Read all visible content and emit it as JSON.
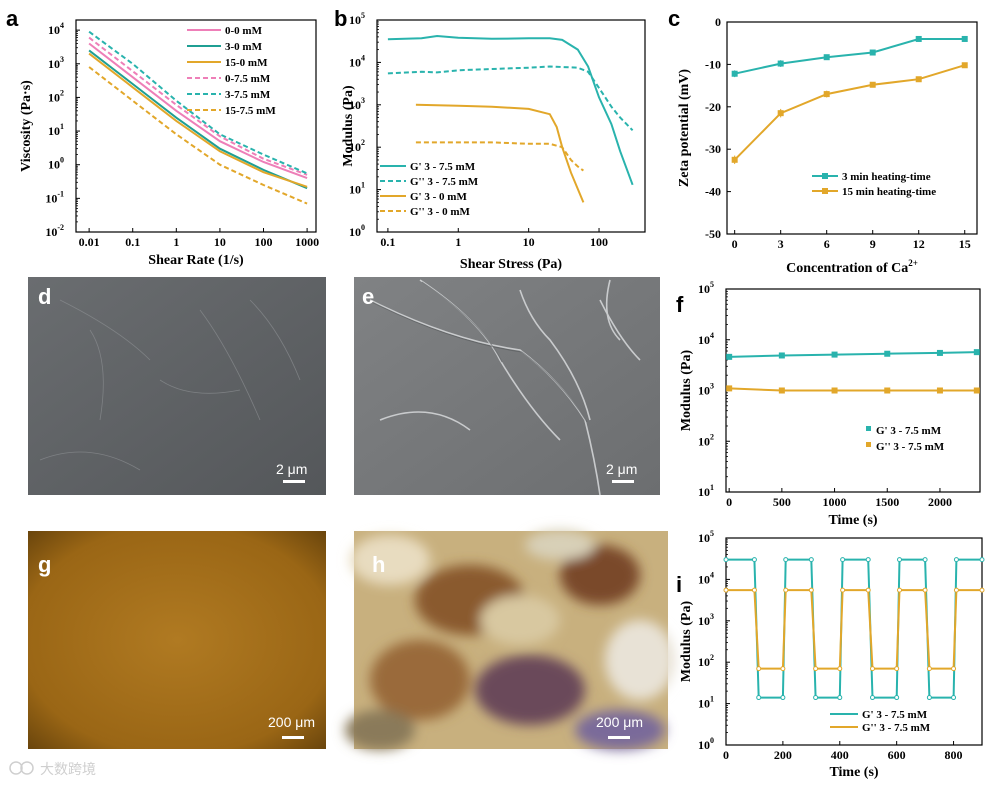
{
  "colors": {
    "pink": "#ee7fb8",
    "teal": "#29b3ad",
    "gold": "#e2a72a",
    "blue": "#2ea8c8",
    "text": "#000000"
  },
  "watermark": "大数跨境",
  "chart_data": [
    {
      "id": "a",
      "letter": "a",
      "type": "line",
      "xscale": "log",
      "yscale": "log",
      "xlim": [
        0.005,
        1600
      ],
      "ylim": [
        0.01,
        20000
      ],
      "xlabel": "Shear Rate (1/s)",
      "ylabel": "Viscosity (Pa·s)",
      "xticks": [
        {
          "v": 0.01,
          "t": "0.01"
        },
        {
          "v": 0.1,
          "t": "0.1"
        },
        {
          "v": 1,
          "t": "1"
        },
        {
          "v": 10,
          "t": "10"
        },
        {
          "v": 100,
          "t": "100"
        },
        {
          "v": 1000,
          "t": "1000"
        }
      ],
      "yticks": [
        {
          "v": 0.01,
          "t": "10"
        },
        {
          "v": 0.1,
          "t": "10"
        },
        {
          "v": 1,
          "t": "10"
        },
        {
          "v": 10,
          "t": "10"
        },
        {
          "v": 100,
          "t": "10"
        },
        {
          "v": 1000,
          "t": "10"
        },
        {
          "v": 10000,
          "t": "10"
        }
      ],
      "ytick_exp": [
        "-2",
        "-1",
        "0",
        "1",
        "2",
        "3",
        "4"
      ],
      "legend_pos": "top-right",
      "series": [
        {
          "name": "0-0 mM",
          "color": "#ee7fb8",
          "dash": false,
          "x": [
            0.01,
            0.1,
            1,
            10,
            100,
            1000
          ],
          "y": [
            4000,
            400,
            40,
            5,
            1.2,
            0.4
          ]
        },
        {
          "name": "3-0 mM",
          "color": "#1f9f93",
          "dash": false,
          "x": [
            0.01,
            0.1,
            1,
            10,
            100,
            1000
          ],
          "y": [
            2500,
            250,
            25,
            3,
            0.7,
            0.2
          ]
        },
        {
          "name": "15-0 mM",
          "color": "#e2a72a",
          "dash": false,
          "x": [
            0.01,
            0.1,
            1,
            10,
            100,
            1000
          ],
          "y": [
            2000,
            200,
            20,
            2.5,
            0.6,
            0.22
          ]
        },
        {
          "name": "0-7.5 mM",
          "color": "#ee7fb8",
          "dash": true,
          "x": [
            0.01,
            0.1,
            1,
            10,
            100,
            1000
          ],
          "y": [
            6000,
            600,
            60,
            7,
            1.5,
            0.5
          ]
        },
        {
          "name": "3-7.5 mM",
          "color": "#29b3ad",
          "dash": true,
          "x": [
            0.01,
            0.1,
            1,
            10,
            100,
            1000
          ],
          "y": [
            9000,
            1000,
            80,
            8,
            2,
            0.55
          ]
        },
        {
          "name": "15-7.5 mM",
          "color": "#e2a72a",
          "dash": true,
          "x": [
            0.01,
            0.1,
            1,
            10,
            100,
            1000
          ],
          "y": [
            800,
            80,
            8,
            1,
            0.25,
            0.07
          ]
        }
      ]
    },
    {
      "id": "b",
      "letter": "b",
      "type": "line",
      "xscale": "log",
      "yscale": "log",
      "xlim": [
        0.07,
        450
      ],
      "ylim": [
        1,
        100000
      ],
      "xlabel": "Shear Stress (Pa)",
      "ylabel": "Modulus (Pa)",
      "xticks": [
        {
          "v": 0.1,
          "t": "0.1"
        },
        {
          "v": 1,
          "t": "1"
        },
        {
          "v": 10,
          "t": "10"
        },
        {
          "v": 100,
          "t": "100"
        }
      ],
      "yticks": [
        {
          "v": 1,
          "t": "10"
        },
        {
          "v": 10,
          "t": "10"
        },
        {
          "v": 100,
          "t": "10"
        },
        {
          "v": 1000,
          "t": "10"
        },
        {
          "v": 10000,
          "t": "10"
        },
        {
          "v": 100000,
          "t": "10"
        }
      ],
      "ytick_exp": [
        "0",
        "1",
        "2",
        "3",
        "4",
        "5"
      ],
      "legend_pos": "bottom-left",
      "series": [
        {
          "name": "G' 3 - 7.5 mM",
          "color": "#29b3ad",
          "dash": false,
          "x": [
            0.1,
            0.3,
            0.5,
            1,
            3,
            10,
            20,
            30,
            50,
            70,
            100,
            150,
            200,
            300
          ],
          "y": [
            35000,
            37000,
            42000,
            38000,
            36000,
            37000,
            37000,
            34000,
            20000,
            8000,
            1500,
            350,
            80,
            13
          ]
        },
        {
          "name": "G'' 3 - 7.5 mM",
          "color": "#29b3ad",
          "dash": true,
          "x": [
            0.1,
            0.3,
            0.5,
            1,
            3,
            10,
            20,
            30,
            50,
            70,
            100,
            150,
            200,
            300
          ],
          "y": [
            5500,
            6000,
            5800,
            6500,
            7000,
            7500,
            8000,
            7800,
            7500,
            6000,
            2500,
            900,
            500,
            250
          ]
        },
        {
          "name": "G' 3 - 0 mM",
          "color": "#e2a72a",
          "dash": false,
          "x": [
            0.25,
            0.5,
            1,
            3,
            10,
            20,
            25,
            30,
            40,
            60
          ],
          "y": [
            1000,
            980,
            950,
            900,
            800,
            600,
            300,
            100,
            25,
            5
          ]
        },
        {
          "name": "G'' 3 - 0 mM",
          "color": "#e2a72a",
          "dash": true,
          "x": [
            0.25,
            0.5,
            1,
            3,
            10,
            20,
            30,
            40,
            50,
            60
          ],
          "y": [
            130,
            130,
            130,
            130,
            120,
            120,
            100,
            50,
            35,
            28
          ]
        }
      ]
    },
    {
      "id": "c",
      "letter": "c",
      "type": "line",
      "xscale": "linear",
      "yscale": "linear",
      "xlim": [
        -0.5,
        15.8
      ],
      "ylim": [
        -50,
        0
      ],
      "xlabel": "Concentration of Ca",
      "xlabel_sup": "2+",
      "ylabel": "Zeta potential (mV)",
      "xticks": [
        {
          "v": 0,
          "t": "0"
        },
        {
          "v": 3,
          "t": "3"
        },
        {
          "v": 6,
          "t": "6"
        },
        {
          "v": 9,
          "t": "9"
        },
        {
          "v": 12,
          "t": "12"
        },
        {
          "v": 15,
          "t": "15"
        }
      ],
      "yticks": [
        {
          "v": 0,
          "t": "0"
        },
        {
          "v": -10,
          "t": "-10"
        },
        {
          "v": -20,
          "t": "-20"
        },
        {
          "v": -30,
          "t": "-30"
        },
        {
          "v": -40,
          "t": "-40"
        },
        {
          "v": -50,
          "t": "-50"
        }
      ],
      "legend_pos": "right-middle",
      "series": [
        {
          "name": "3 min heating-time",
          "color": "#29b3ad",
          "dash": false,
          "marker": "square",
          "x": [
            0,
            3,
            6,
            9,
            12,
            15
          ],
          "y": [
            -12.2,
            -9.8,
            -8.3,
            -7.2,
            -4,
            -4
          ],
          "err": [
            0.8,
            0.8,
            0.5,
            0.4,
            0.3,
            0.3
          ]
        },
        {
          "name": "15 min heating-time",
          "color": "#e2a72a",
          "dash": false,
          "marker": "square",
          "x": [
            0,
            3,
            6,
            9,
            12,
            15
          ],
          "y": [
            -32.5,
            -21.5,
            -17,
            -14.8,
            -13.5,
            -10.2
          ],
          "err": [
            1,
            1,
            0.8,
            0.4,
            0.4,
            0.3
          ]
        }
      ]
    },
    {
      "id": "f",
      "letter": "f",
      "type": "line",
      "xscale": "linear",
      "yscale": "log",
      "xlim": [
        -30,
        2380
      ],
      "ylim": [
        10,
        100000
      ],
      "xlabel": "Time (s)",
      "ylabel": "Modulus (Pa)",
      "xticks": [
        {
          "v": 0,
          "t": "0"
        },
        {
          "v": 500,
          "t": "500"
        },
        {
          "v": 1000,
          "t": "1000"
        },
        {
          "v": 1500,
          "t": "1500"
        },
        {
          "v": 2000,
          "t": "2000"
        }
      ],
      "yticks": [
        {
          "v": 10,
          "t": "10"
        },
        {
          "v": 100,
          "t": "10"
        },
        {
          "v": 1000,
          "t": "10"
        },
        {
          "v": 10000,
          "t": "10"
        },
        {
          "v": 100000,
          "t": "10"
        }
      ],
      "ytick_exp": [
        "1",
        "2",
        "3",
        "4",
        "5"
      ],
      "legend_pos": "right-middle",
      "series": [
        {
          "name": "G' 3 - 7.5 mM",
          "color": "#29b3ad",
          "dash": false,
          "marker": "square",
          "x": [
            0,
            500,
            1000,
            1500,
            2000,
            2350
          ],
          "y": [
            4600,
            4900,
            5100,
            5300,
            5500,
            5700
          ]
        },
        {
          "name": "G'' 3 - 7.5 mM",
          "color": "#e2a72a",
          "dash": false,
          "marker": "square",
          "x": [
            0,
            500,
            1000,
            1500,
            2000,
            2350
          ],
          "y": [
            1100,
            1000,
            1000,
            1000,
            1000,
            1000
          ]
        }
      ]
    },
    {
      "id": "i",
      "letter": "i",
      "type": "line",
      "xscale": "linear",
      "yscale": "log",
      "xlim": [
        0,
        900
      ],
      "ylim": [
        1,
        100000
      ],
      "xlabel": "Time (s)",
      "ylabel": "Modulus (Pa)",
      "xticks": [
        {
          "v": 0,
          "t": "0"
        },
        {
          "v": 200,
          "t": "200"
        },
        {
          "v": 400,
          "t": "400"
        },
        {
          "v": 600,
          "t": "600"
        },
        {
          "v": 800,
          "t": "800"
        }
      ],
      "yticks": [
        {
          "v": 1,
          "t": "10"
        },
        {
          "v": 10,
          "t": "10"
        },
        {
          "v": 100,
          "t": "10"
        },
        {
          "v": 1000,
          "t": "10"
        },
        {
          "v": 10000,
          "t": "10"
        },
        {
          "v": 100000,
          "t": "10"
        }
      ],
      "ytick_exp": [
        "0",
        "1",
        "2",
        "3",
        "4",
        "5"
      ],
      "legend_pos": "bottom-right",
      "series": [
        {
          "name": "G' 3 - 7.5 mM",
          "color": "#29b3ad",
          "dash": false,
          "marker": "circle",
          "x": [
            0,
            100,
            115,
            200,
            210,
            300,
            315,
            400,
            410,
            500,
            515,
            600,
            610,
            700,
            715,
            800,
            810,
            900
          ],
          "y": [
            30000,
            30000,
            14,
            14,
            30000,
            30000,
            14,
            14,
            30000,
            30000,
            14,
            14,
            30000,
            30000,
            14,
            14,
            30000,
            30000
          ]
        },
        {
          "name": "G'' 3 - 7.5 mM",
          "color": "#e2a72a",
          "dash": false,
          "marker": "circle",
          "x": [
            0,
            100,
            115,
            200,
            210,
            300,
            315,
            400,
            410,
            500,
            515,
            600,
            610,
            700,
            715,
            800,
            810,
            900
          ],
          "y": [
            5500,
            5500,
            70,
            70,
            5500,
            5500,
            70,
            70,
            5500,
            5500,
            70,
            70,
            5500,
            5500,
            70,
            70,
            5500,
            5500
          ]
        }
      ]
    }
  ],
  "images": [
    {
      "id": "d",
      "letter": "d",
      "scale": "2 μm"
    },
    {
      "id": "e",
      "letter": "e",
      "scale": "2 μm"
    },
    {
      "id": "g",
      "letter": "g",
      "scale": "200 μm"
    },
    {
      "id": "h",
      "letter": "h",
      "scale": "200 μm"
    }
  ]
}
